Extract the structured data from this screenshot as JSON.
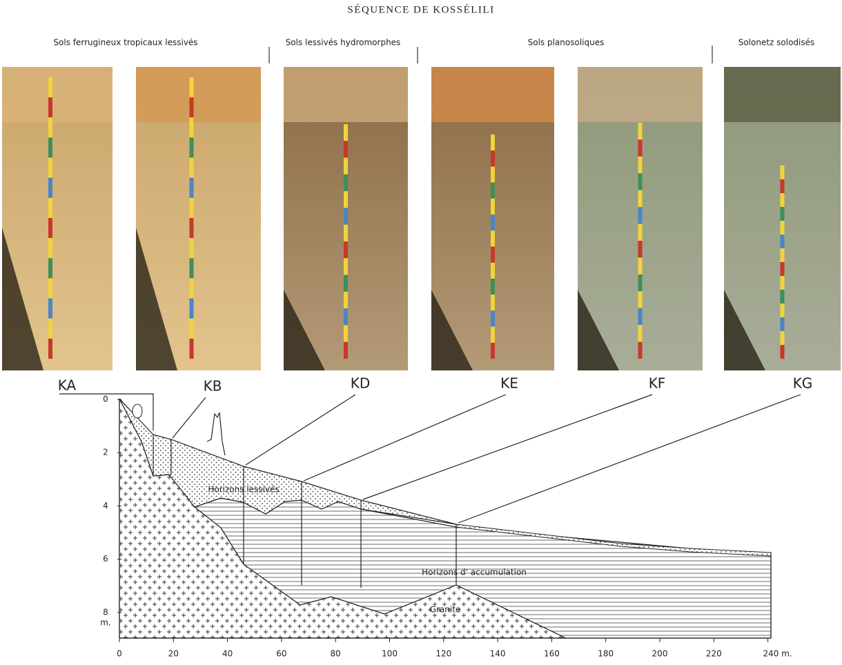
{
  "title": "SÉQUENCE DE KOSSÉLILI",
  "groups": [
    "Sols ferrugineux tropicaux lessivés",
    "Sols lessivés hydromorphes",
    "Sols  planosoliques",
    "Solonetz solodisés"
  ],
  "profiles": [
    "KA",
    "KB",
    "KD",
    "KE",
    "KF",
    "KG"
  ],
  "section": {
    "labels": {
      "lessive": "Horizons  lessivés",
      "accumulation": "Horizons  d'  accumulation",
      "granite": "Granite"
    },
    "y_ticks": [
      0,
      2,
      4,
      6,
      8
    ],
    "y_unit": "m.",
    "x_ticks": [
      0,
      20,
      40,
      60,
      80,
      100,
      120,
      140,
      160,
      180,
      200,
      220,
      "240 m."
    ]
  }
}
